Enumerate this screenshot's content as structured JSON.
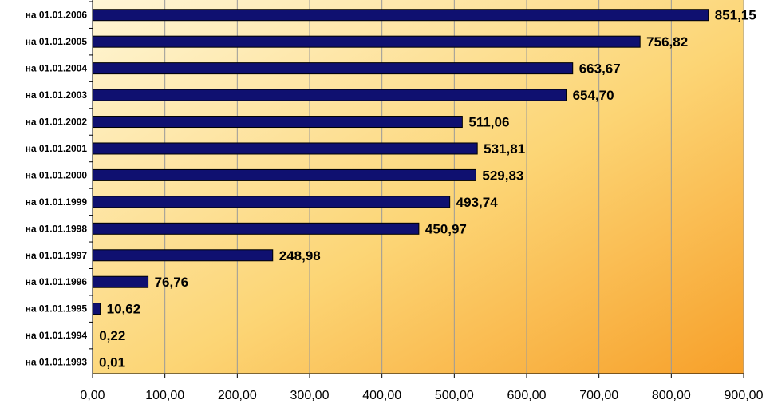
{
  "chart_data": {
    "type": "bar",
    "orientation": "horizontal",
    "title": "",
    "xlabel": "",
    "ylabel": "",
    "categories": [
      "на 01.01.2006",
      "на 01.01.2005",
      "на 01.01.2004",
      "на 01.01.2003",
      "на 01.01.2002",
      "на 01.01.2001",
      "на 01.01.2000",
      "на 01.01.1999",
      "на 01.01.1998",
      "на 01.01.1997",
      "на 01.01.1996",
      "на 01.01.1995",
      "на 01.01.1994",
      "на 01.01.1993"
    ],
    "values": [
      851.15,
      756.82,
      663.67,
      654.7,
      511.06,
      531.81,
      529.83,
      493.74,
      450.97,
      248.98,
      76.76,
      10.62,
      0.22,
      0.01
    ],
    "value_labels": [
      "851,15",
      "756,82",
      "663,67",
      "654,70",
      "511,06",
      "531,81",
      "529,83",
      "493,74",
      "450,97",
      "248,98",
      "76,76",
      "10,62",
      "0,22",
      "0,01"
    ],
    "xlim": [
      0,
      900
    ],
    "x_ticks": [
      0,
      100,
      200,
      300,
      400,
      500,
      600,
      700,
      800,
      900
    ],
    "x_tick_labels": [
      "0,00",
      "100,00",
      "200,00",
      "300,00",
      "400,00",
      "500,00",
      "600,00",
      "700,00",
      "800,00",
      "900,00"
    ],
    "grid": "vertical",
    "legend": "none",
    "colors": {
      "bar": "#0f1070",
      "bar_edge": "#000000",
      "plot_bg_light": "#fff6d6",
      "plot_bg_mid": "#fcd575",
      "plot_bg_dark": "#f7a02a",
      "grid": "#9a9a9a"
    }
  }
}
